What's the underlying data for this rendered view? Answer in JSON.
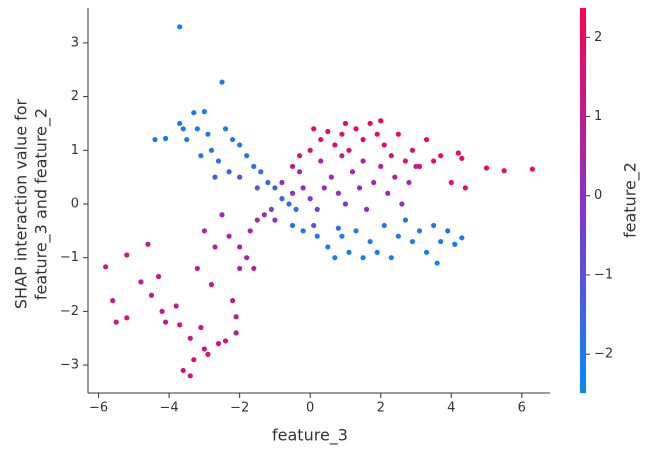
{
  "chart_data": {
    "type": "scatter",
    "xlabel": "feature_3",
    "ylabel": [
      "SHAP interaction value for",
      "feature_3 and feature_2"
    ],
    "colorbar_label": "feature_2",
    "xlim": [
      -6.3,
      6.8
    ],
    "ylim": [
      -3.52,
      3.65
    ],
    "clim": [
      -2.49,
      2.37
    ],
    "colormap": [
      "#008bfb",
      "#8c30c8",
      "#ff0052"
    ],
    "xticks": [
      {
        "value": -6,
        "label": "−6"
      },
      {
        "value": -4,
        "label": "−4"
      },
      {
        "value": -2,
        "label": "−2"
      },
      0,
      2,
      4,
      6
    ],
    "yticks": [
      {
        "value": -3,
        "label": "−3"
      },
      {
        "value": -2,
        "label": "−2"
      },
      {
        "value": -1,
        "label": "−1"
      },
      0,
      1,
      2,
      3
    ],
    "cticks": [
      {
        "value": -2,
        "label": "−2"
      },
      {
        "value": -1,
        "label": "−1"
      },
      0,
      1,
      2
    ],
    "x": [
      -3.7,
      -2.5,
      6.3,
      5.5,
      5.0,
      4.4,
      4.2,
      4.3,
      -4.4,
      -4.1,
      -3.6,
      -3.5,
      -3.3,
      -3.0,
      -3.2,
      -2.9,
      -2.8,
      -3.1,
      -2.6,
      -2.4,
      -2.2,
      -2.0,
      -1.8,
      -1.6,
      -1.4,
      -1.2,
      -1.0,
      -0.8,
      -0.6,
      -0.4,
      -2.3,
      -2.7,
      -2.0,
      -1.5,
      -3.7,
      -5.8,
      -5.6,
      -5.5,
      -5.2,
      -5.2,
      -4.8,
      -4.5,
      -4.6,
      -4.3,
      -4.2,
      -4.1,
      -3.8,
      -3.7,
      -3.6,
      -3.4,
      -3.3,
      -3.2,
      -3.1,
      -3.0,
      -2.9,
      -2.8,
      -2.6,
      -2.4,
      -2.2,
      -2.1,
      -2.0,
      -3.0,
      -2.7,
      -2.5,
      -2.3,
      -2.0,
      -1.8,
      -1.7,
      -1.5,
      -1.3,
      -1.6,
      -3.4,
      -2.1,
      -1.0,
      -0.8,
      -0.5,
      -0.2,
      0,
      0.2,
      0.4,
      0.6,
      0.8,
      1.0,
      1.2,
      1.4,
      1.6,
      1.8,
      2.0,
      2.2,
      2.4,
      2.6,
      2.8,
      3.0,
      0.3,
      0.9,
      1.5,
      -0.3,
      0.1,
      -1.1,
      -0.5,
      -0.2,
      0.2,
      0.5,
      0.7,
      0.9,
      1.1,
      1.3,
      1.5,
      1.7,
      1.9,
      2.1,
      2.3,
      2.5,
      2.7,
      2.9,
      3.1,
      3.3,
      3.5,
      3.7,
      3.9,
      4.1,
      3.6,
      4.3,
      0.8,
      -0.3,
      0,
      0.3,
      0.5,
      0.7,
      0.9,
      1.1,
      1.3,
      1.5,
      1.7,
      1.9,
      2.1,
      2.3,
      2.5,
      2.7,
      2.9,
      3.1,
      3.3,
      3.5,
      3.7,
      4.0,
      0.1,
      1.0,
      2.0,
      -0.5
    ],
    "values": [
      3.3,
      2.27,
      0.65,
      0.62,
      0.67,
      0.3,
      0.95,
      0.85,
      1.2,
      1.22,
      1.4,
      1.2,
      1.7,
      1.72,
      1.4,
      1.3,
      1.0,
      0.9,
      0.8,
      1.4,
      1.2,
      1.1,
      0.9,
      0.7,
      0.6,
      0.4,
      0.3,
      0.1,
      0.0,
      -0.1,
      0.6,
      0.5,
      0.5,
      0.3,
      1.5,
      -1.17,
      -1.8,
      -2.2,
      -0.95,
      -2.12,
      -1.45,
      -1.7,
      -0.75,
      -1.35,
      -2.0,
      -2.2,
      -1.9,
      -2.25,
      -3.1,
      -2.5,
      -2.9,
      -1.2,
      -2.3,
      -2.7,
      -2.8,
      -1.5,
      -2.6,
      -2.55,
      -1.8,
      -2.1,
      -1.2,
      -0.5,
      -0.8,
      -0.2,
      -0.6,
      -0.8,
      -1.0,
      -0.5,
      -0.3,
      -0.2,
      -1.2,
      -3.2,
      -2.4,
      -0.3,
      0.4,
      0.2,
      0.3,
      0.1,
      -0.1,
      0.3,
      0.5,
      0.2,
      0.0,
      0.6,
      0.3,
      -0.1,
      0.4,
      0.7,
      0.2,
      0.5,
      0.0,
      0.4,
      0.7,
      0.8,
      0.9,
      0.8,
      0.6,
      -0.4,
      -0.1,
      -0.4,
      -0.5,
      -0.6,
      -0.8,
      -1.0,
      -0.6,
      -0.9,
      -0.5,
      -1.0,
      -0.7,
      -0.9,
      -0.4,
      -1.0,
      -0.6,
      -0.3,
      -0.7,
      -0.5,
      -0.9,
      -0.4,
      -0.7,
      -0.5,
      -0.75,
      -1.1,
      -0.63,
      -0.45,
      0.9,
      1.0,
      1.2,
      1.35,
      1.1,
      1.3,
      1.0,
      1.4,
      1.2,
      1.5,
      1.3,
      1.1,
      0.9,
      1.3,
      0.8,
      1.0,
      0.7,
      1.2,
      0.8,
      0.9,
      0.4,
      1.4,
      1.5,
      1.55,
      0.7
    ],
    "color_values": [
      -2.2,
      -2,
      2.1,
      2,
      2,
      1.8,
      2,
      1.9,
      -2,
      -2,
      -2,
      -2,
      -2,
      -2,
      -2.1,
      -2,
      -1.8,
      -1.9,
      -1.7,
      -2,
      -1.9,
      -2,
      -1.8,
      -1.7,
      -1.6,
      -1.6,
      -1.4,
      -1.5,
      -1.6,
      -1.8,
      -1.5,
      -1.2,
      -1.0,
      -0.9,
      -2.1,
      1.1,
      1.2,
      1.3,
      1,
      1.4,
      1,
      1.1,
      0.9,
      1.2,
      1.1,
      1.0,
      1.2,
      1.3,
      1.4,
      1.3,
      1.5,
      0.9,
      1.4,
      1.5,
      1.6,
      1.2,
      1.3,
      1.4,
      1.0,
      1.2,
      1.0,
      0.6,
      0.7,
      0.4,
      0.7,
      0.8,
      0.9,
      0.5,
      0.3,
      0.2,
      1.0,
      1.5,
      1.1,
      0,
      0.2,
      -0.2,
      0,
      -0.3,
      -0.5,
      0.1,
      0.3,
      0,
      -0.2,
      0.4,
      0.2,
      -0.1,
      0.3,
      0.6,
      0.2,
      0.5,
      0,
      0.4,
      0.8,
      0.6,
      0.7,
      0.7,
      0.4,
      -0.8,
      -0.7,
      -1.8,
      -1.9,
      -2,
      -2.1,
      -2.2,
      -2,
      -2.1,
      -1.9,
      -2.2,
      -2,
      -2.1,
      -1.9,
      -2.2,
      -2,
      -1.8,
      -2,
      -1.9,
      -2.1,
      -1.8,
      -2,
      -1.9,
      -2.1,
      -2.3,
      -2,
      -1.8,
      1.6,
      1.8,
      2,
      2.1,
      1.9,
      2.1,
      1.8,
      2.2,
      2,
      2.2,
      2.1,
      1.9,
      1.7,
      2,
      1.7,
      1.8,
      1.7,
      2,
      1.8,
      1.9,
      1.6,
      2,
      2.2,
      2.3,
      1.2
    ]
  }
}
